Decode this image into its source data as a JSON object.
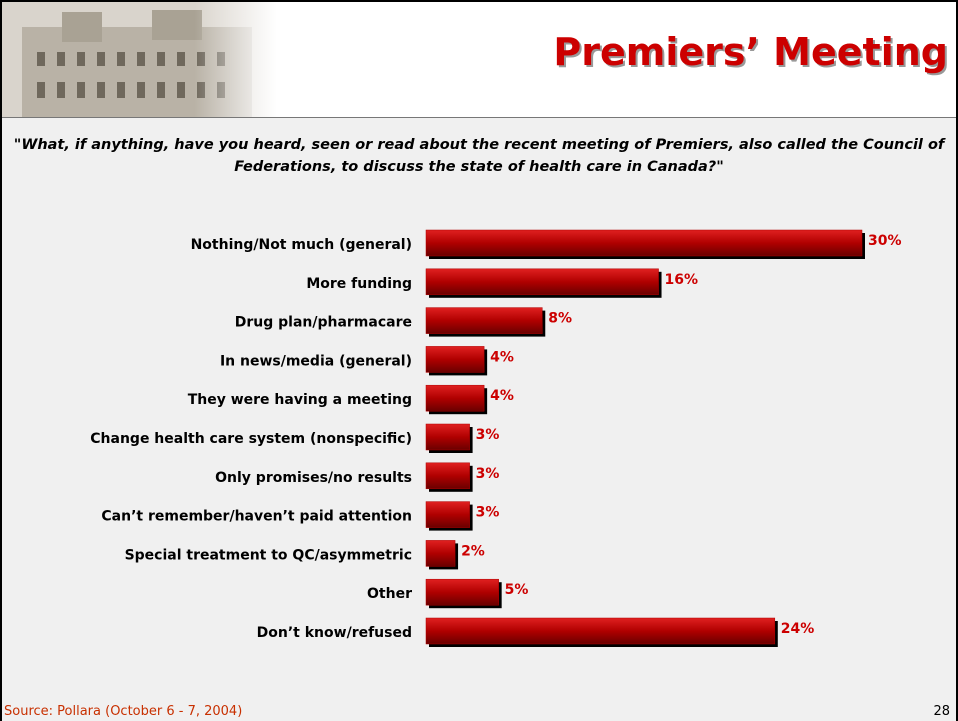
{
  "header": {
    "title": "Premiers’ Meeting"
  },
  "question": "\"What, if anything, have you heard, seen or read about the recent meeting of Premiers, also called the Council of Federations, to discuss the state of health care in Canada?\"",
  "chart_data": {
    "type": "bar",
    "orientation": "horizontal",
    "categories": [
      "Nothing/Not much (general)",
      "More funding",
      "Drug plan/pharmacare",
      "In news/media (general)",
      "They were having a meeting",
      "Change health care system (nonspecific)",
      "Only promises/no results",
      "Can’t remember/haven’t paid attention",
      "Special treatment to QC/asymmetric",
      "Other",
      "Don’t know/refused"
    ],
    "values": [
      30,
      16,
      8,
      4,
      4,
      3,
      3,
      3,
      2,
      5,
      24
    ],
    "value_labels": [
      "30%",
      "16%",
      "8%",
      "4%",
      "4%",
      "3%",
      "3%",
      "3%",
      "2%",
      "5%",
      "24%"
    ],
    "color": "#b00000"
  },
  "footer": {
    "source": "Source: Pollara (October 6 - 7, 2004)",
    "page_number": "28"
  }
}
